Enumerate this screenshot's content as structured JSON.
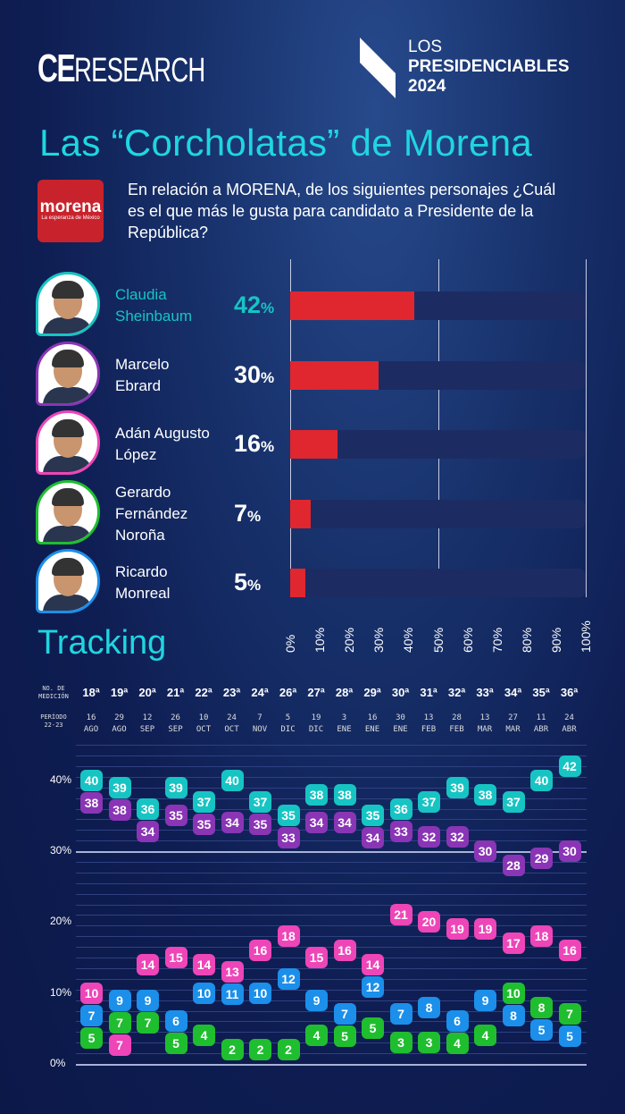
{
  "header": {
    "brand_left": {
      "bold": "CE",
      "rest": "RESEARCH"
    },
    "brand_right": {
      "line1": "LOS",
      "line2": "PRESIDENCIABLES",
      "line3": "2024"
    },
    "title": "Las “Corcholatas” de Morena",
    "party_logo": {
      "name": "morena",
      "slogan": "La esperanza de México",
      "color": "#c8232c"
    },
    "question": "En relación a MORENA, de los siguientes personajes ¿Cuál es el que más le gusta para candidato a Presidente de la República?"
  },
  "colors": {
    "sheinbaum": "#17c4c4",
    "ebrard": "#8a35b5",
    "adan": "#ee45b8",
    "norona": "#1fbe2f",
    "monreal": "#1b8fea",
    "bar": "#e0262f",
    "title": "#1fd6e0"
  },
  "chart_data": [
    {
      "type": "bar",
      "orientation": "horizontal",
      "categories": [
        "Claudia Sheinbaum",
        "Marcelo Ebrard",
        "Adán Augusto López",
        "Gerardo Fernández Noroña",
        "Ricardo Monreal"
      ],
      "category_lines": [
        [
          "Claudia",
          "Sheinbaum"
        ],
        [
          "Marcelo",
          "Ebrard"
        ],
        [
          "Adán Augusto",
          "López"
        ],
        [
          "Gerardo",
          "Fernández",
          "Noroña"
        ],
        [
          "Ricardo",
          "Monreal"
        ]
      ],
      "values": [
        42,
        30,
        16,
        7,
        5
      ],
      "value_labels": [
        "42",
        "30",
        "16",
        "7",
        "5"
      ],
      "unit": "%",
      "avatar_colors": [
        "#17c4c4",
        "#8a35b5",
        "#ee45b8",
        "#1fbe2f",
        "#1b8fea"
      ],
      "xlim": [
        0,
        100
      ],
      "xticks": [
        "0%",
        "10%",
        "20%",
        "30%",
        "40%",
        "50%",
        "60%",
        "70%",
        "80%",
        "90%",
        "100%"
      ]
    },
    {
      "type": "line",
      "title": "Tracking",
      "header_labels": {
        "measurement": "NO. DE MEDICIÓN",
        "period": "PERÍODO 22-23"
      },
      "measurements": [
        "18ª",
        "19ª",
        "20ª",
        "21ª",
        "22ª",
        "23ª",
        "24ª",
        "26ª",
        "27ª",
        "28ª",
        "29ª",
        "30ª",
        "31ª",
        "32ª",
        "33ª",
        "34ª",
        "35ª",
        "36ª"
      ],
      "dates": [
        [
          "16",
          "AGO"
        ],
        [
          "29",
          "AGO"
        ],
        [
          "12",
          "SEP"
        ],
        [
          "26",
          "SEP"
        ],
        [
          "10",
          "OCT"
        ],
        [
          "24",
          "OCT"
        ],
        [
          "7",
          "NOV"
        ],
        [
          "5",
          "DIC"
        ],
        [
          "19",
          "DIC"
        ],
        [
          "3",
          "ENE"
        ],
        [
          "16",
          "ENE"
        ],
        [
          "30",
          "ENE"
        ],
        [
          "13",
          "FEB"
        ],
        [
          "28",
          "FEB"
        ],
        [
          "13",
          "MAR"
        ],
        [
          "27",
          "MAR"
        ],
        [
          "11",
          "ABR"
        ],
        [
          "24",
          "ABR"
        ]
      ],
      "ylim": [
        0,
        45
      ],
      "yticks": [
        "0%",
        "10%",
        "20%",
        "30%",
        "40%"
      ],
      "series": [
        {
          "key": "ebrard",
          "values": [
            38,
            38,
            34,
            35,
            35,
            34,
            35,
            33,
            34,
            34,
            34,
            33,
            32,
            32,
            30,
            28,
            29,
            30
          ]
        },
        {
          "key": "norona",
          "values": [
            5,
            7,
            7,
            5,
            4,
            2,
            2,
            2,
            4,
            5,
            5,
            3,
            3,
            4,
            4,
            10,
            8,
            7
          ]
        },
        {
          "key": "adan",
          "values": [
            10,
            7,
            14,
            15,
            14,
            13,
            16,
            18,
            15,
            16,
            14,
            21,
            20,
            19,
            19,
            17,
            18,
            16
          ]
        },
        {
          "key": "monreal",
          "values": [
            7,
            9,
            9,
            6,
            10,
            11,
            10,
            12,
            9,
            7,
            12,
            7,
            8,
            6,
            9,
            8,
            5,
            5
          ]
        },
        {
          "key": "sheinbaum",
          "values": [
            40,
            39,
            36,
            39,
            37,
            40,
            37,
            35,
            38,
            38,
            35,
            36,
            37,
            39,
            38,
            37,
            40,
            42
          ]
        }
      ]
    }
  ]
}
